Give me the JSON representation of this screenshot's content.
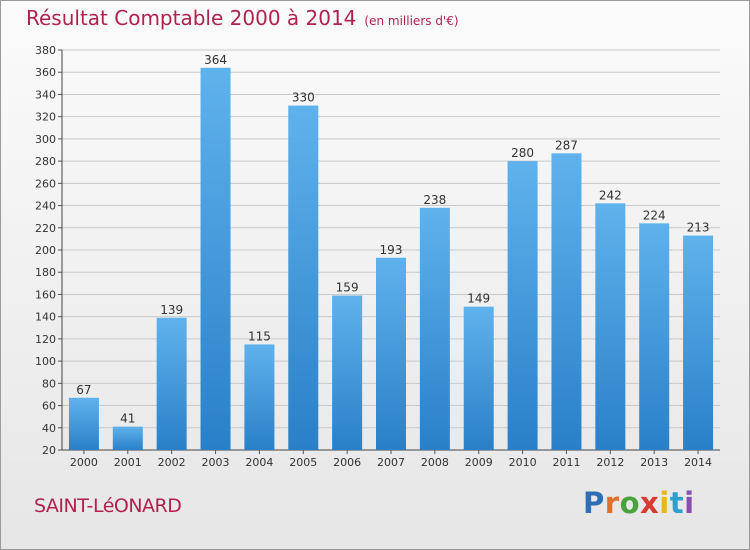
{
  "header": {
    "title": "Résultat Comptable 2000 à 2014",
    "subtitle": "(en milliers d'€)"
  },
  "footer": {
    "location": "SAINT-LéONARD",
    "logo_text": "Proxiti",
    "logo_letters": [
      {
        "ch": "P",
        "color": "#2f6db5"
      },
      {
        "ch": "r",
        "color": "#e0702a"
      },
      {
        "ch": "o",
        "color": "#49a23b"
      },
      {
        "ch": "x",
        "color": "#d83a2f"
      },
      {
        "ch": "i",
        "color": "#e8b61a"
      },
      {
        "ch": "t",
        "color": "#2f9fd0"
      },
      {
        "ch": "i",
        "color": "#8a4fb2"
      }
    ]
  },
  "colors": {
    "title": "#b0224e",
    "bar_light": "#5fb2ec",
    "bar_dark": "#2a80c8",
    "grid": "#c9c9c9"
  },
  "chart_data": {
    "type": "bar",
    "title": "Résultat Comptable 2000 à 2014",
    "subtitle": "(en milliers d'€)",
    "categories": [
      "2000",
      "2001",
      "2002",
      "2003",
      "2004",
      "2005",
      "2006",
      "2007",
      "2008",
      "2009",
      "2010",
      "2011",
      "2012",
      "2013",
      "2014"
    ],
    "values": [
      67,
      41,
      139,
      364,
      115,
      330,
      159,
      193,
      238,
      149,
      280,
      287,
      242,
      224,
      213
    ],
    "ylim": [
      20,
      380
    ],
    "yticks": [
      20,
      40,
      60,
      80,
      100,
      120,
      140,
      160,
      180,
      200,
      220,
      240,
      260,
      280,
      300,
      320,
      340,
      360,
      380
    ],
    "grid": true,
    "legend": "none"
  }
}
